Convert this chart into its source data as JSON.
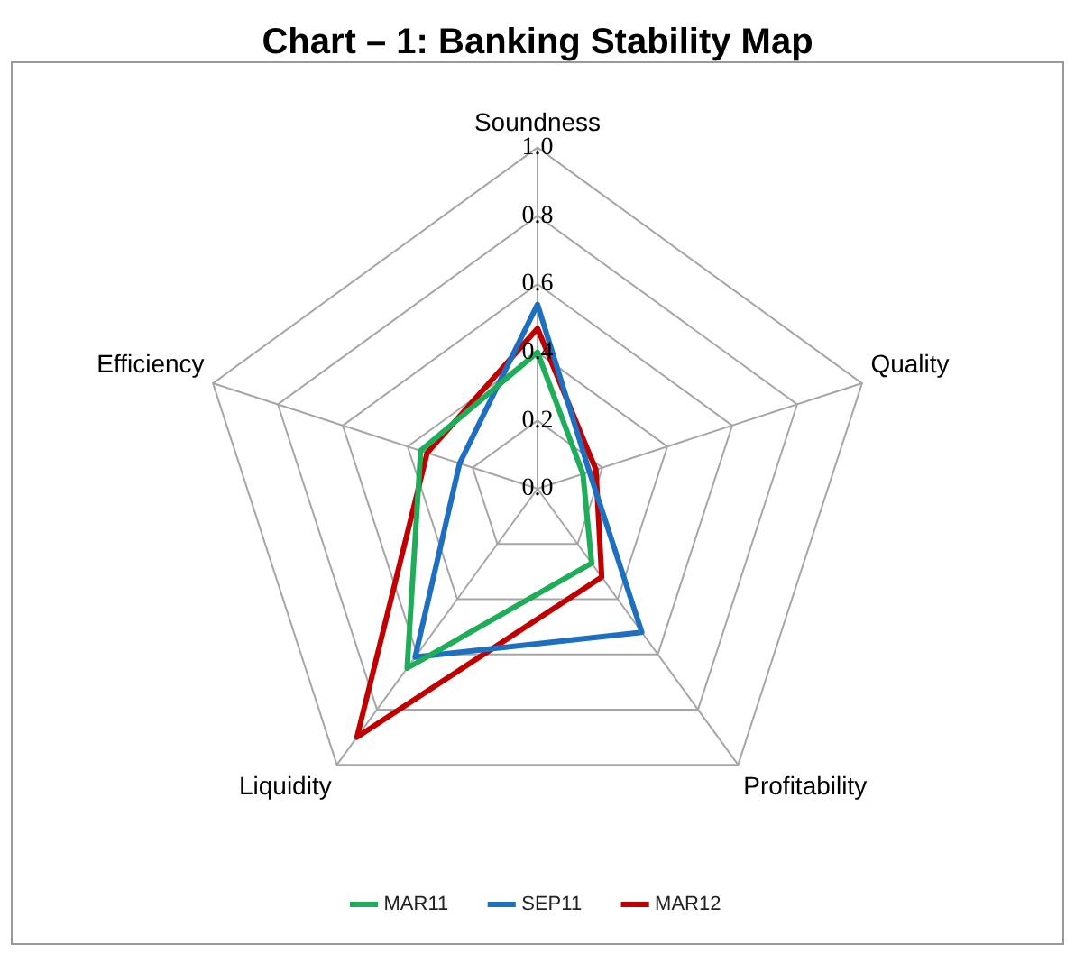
{
  "chart_data": {
    "type": "radar",
    "title": "Chart – 1: Banking Stability Map",
    "categories": [
      "Soundness",
      "Quality",
      "Profitability",
      "Liquidity",
      "Efficiency"
    ],
    "series": [
      {
        "name": "MAR11",
        "color": "#1fad5a",
        "values": [
          0.4,
          0.14,
          0.27,
          0.65,
          0.36
        ]
      },
      {
        "name": "SEP11",
        "color": "#1f6fc0",
        "values": [
          0.54,
          0.16,
          0.52,
          0.61,
          0.24
        ]
      },
      {
        "name": "MAR12",
        "color": "#c00000",
        "values": [
          0.47,
          0.18,
          0.32,
          0.9,
          0.34
        ]
      }
    ],
    "ylim": [
      0,
      1
    ],
    "yticks": [
      {
        "value": 0,
        "label": "0.0"
      },
      {
        "value": 0.2,
        "label": "0.2"
      },
      {
        "value": 0.4,
        "label": "0.4"
      },
      {
        "value": 0.6,
        "label": "0.6"
      },
      {
        "value": 0.8,
        "label": "0.8"
      },
      {
        "value": 1,
        "label": "1.0"
      }
    ],
    "grid": true,
    "legend": "bottom",
    "marker": "none",
    "line_style": "solid"
  }
}
